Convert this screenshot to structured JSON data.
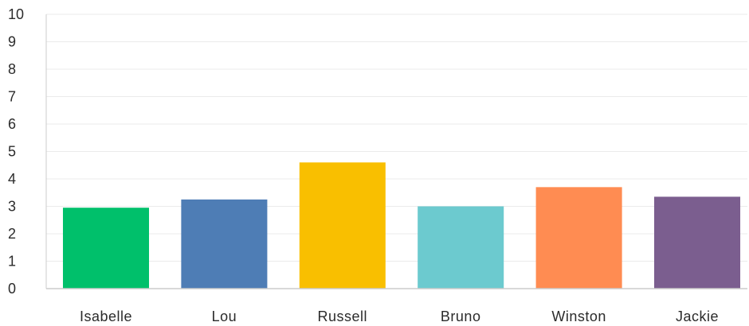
{
  "chart_data": {
    "type": "bar",
    "title": "",
    "xlabel": "",
    "ylabel": "",
    "categories": [
      "Isabelle",
      "Lou",
      "Russell",
      "Bruno",
      "Winston",
      "Jackie"
    ],
    "values": [
      2.95,
      3.25,
      4.6,
      3.0,
      3.7,
      3.35
    ],
    "colors": [
      "#00c06b",
      "#4e7db5",
      "#f9bf00",
      "#6ccacf",
      "#ff8c52",
      "#7b5e8f"
    ],
    "ylim": [
      0,
      10
    ],
    "yticks": [
      "0",
      "1",
      "2",
      "3",
      "4",
      "5",
      "6",
      "7",
      "8",
      "9",
      "10"
    ],
    "grid": true,
    "grid_color": "#ebebeb",
    "axis_color": "#cccccc"
  }
}
